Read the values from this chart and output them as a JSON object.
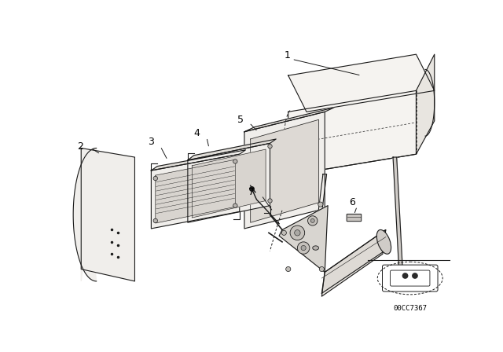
{
  "background_color": "#ffffff",
  "line_color": "#1a1a1a",
  "label_color": "#000000",
  "code_text": "00CC7367",
  "fig_width": 6.4,
  "fig_height": 4.48,
  "dpi": 100,
  "font_size_labels": 9,
  "font_size_code": 6.5,
  "headrest_fill": "#f5f3f0",
  "panel_fill": "#f0eeeb",
  "cover_fill": "#f0eeeb",
  "mechanism_fill": "#e8e5e0"
}
